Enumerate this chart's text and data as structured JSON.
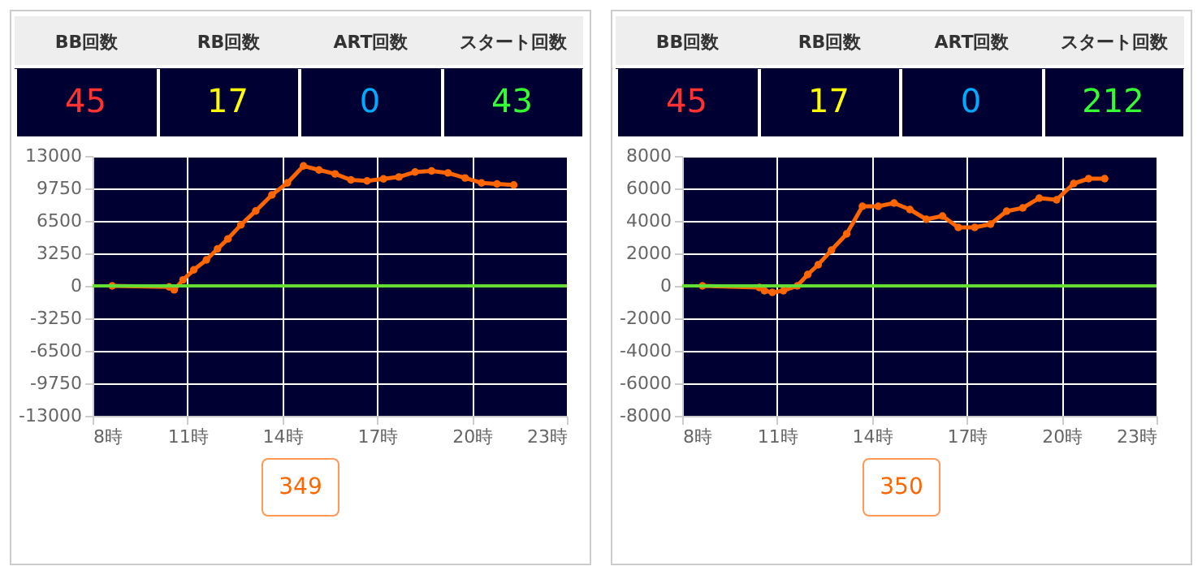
{
  "chart_data": [
    {
      "type": "other",
      "categories": [
        "BB回数",
        "RB回数",
        "ART回数",
        "スタート回数"
      ],
      "values": [
        45,
        17,
        0,
        43
      ],
      "data_labels": true
    },
    {
      "type": "line",
      "x": [
        8.62,
        10.42,
        10.58,
        10.86,
        11.2,
        11.6,
        11.95,
        12.28,
        12.69,
        13.16,
        13.67,
        14.16,
        14.67,
        15.16,
        15.67,
        16.17,
        16.68,
        17.2,
        17.69,
        18.2,
        18.72,
        19.24,
        19.78,
        20.3,
        20.79,
        21.32
      ],
      "values": [
        0,
        -100,
        -400,
        600,
        1600,
        2600,
        3700,
        4700,
        6100,
        7500,
        9100,
        10300,
        12000,
        11600,
        11200,
        10600,
        10500,
        10700,
        10900,
        11400,
        11500,
        11300,
        10800,
        10300,
        10200,
        10100
      ],
      "color": "#ff6600",
      "marker": "circle",
      "grid": true,
      "xlim": [
        8,
        23
      ],
      "xticks": [
        {
          "value": 8,
          "label": "8時"
        },
        {
          "value": 11,
          "label": "11時"
        },
        {
          "value": 14,
          "label": "14時"
        },
        {
          "value": 17,
          "label": "17時"
        },
        {
          "value": 20,
          "label": "20時"
        },
        {
          "value": 23,
          "label": "23時"
        }
      ],
      "ylim": [
        -13000,
        13000
      ],
      "yticks": [
        13000,
        9750,
        6500,
        3250,
        0,
        -3250,
        -6500,
        -9750,
        -13000
      ],
      "ref_lines": [
        {
          "axis": "y",
          "value": 0,
          "color": "#66dd33"
        }
      ],
      "annotations": [
        "349"
      ]
    },
    {
      "type": "other",
      "categories": [
        "BB回数",
        "RB回数",
        "ART回数",
        "スタート回数"
      ],
      "values": [
        45,
        17,
        0,
        212
      ],
      "data_labels": true
    },
    {
      "type": "line",
      "x": [
        8.64,
        10.44,
        10.6,
        10.85,
        11.2,
        11.64,
        11.97,
        12.3,
        12.72,
        13.2,
        13.7,
        14.2,
        14.7,
        15.2,
        15.72,
        16.23,
        16.73,
        17.25,
        17.75,
        18.26,
        18.77,
        19.29,
        19.84,
        20.38,
        20.85,
        21.36
      ],
      "values": [
        0,
        -100,
        -300,
        -400,
        -300,
        0,
        700,
        1300,
        2200,
        3200,
        4900,
        4900,
        5100,
        4700,
        4100,
        4300,
        3600,
        3600,
        3800,
        4600,
        4800,
        5400,
        5300,
        6300,
        6600,
        6600
      ],
      "color": "#ff6600",
      "marker": "circle",
      "grid": true,
      "xlim": [
        8,
        23
      ],
      "xticks": [
        {
          "value": 8,
          "label": "8時"
        },
        {
          "value": 11,
          "label": "11時"
        },
        {
          "value": 14,
          "label": "14時"
        },
        {
          "value": 17,
          "label": "17時"
        },
        {
          "value": 20,
          "label": "20時"
        },
        {
          "value": 23,
          "label": "23時"
        }
      ],
      "ylim": [
        -8000,
        8000
      ],
      "yticks": [
        8000,
        6000,
        4000,
        2000,
        0,
        -2000,
        -4000,
        -6000,
        -8000
      ],
      "ref_lines": [
        {
          "axis": "y",
          "value": 0,
          "color": "#66dd33"
        }
      ],
      "annotations": [
        "350"
      ]
    }
  ]
}
